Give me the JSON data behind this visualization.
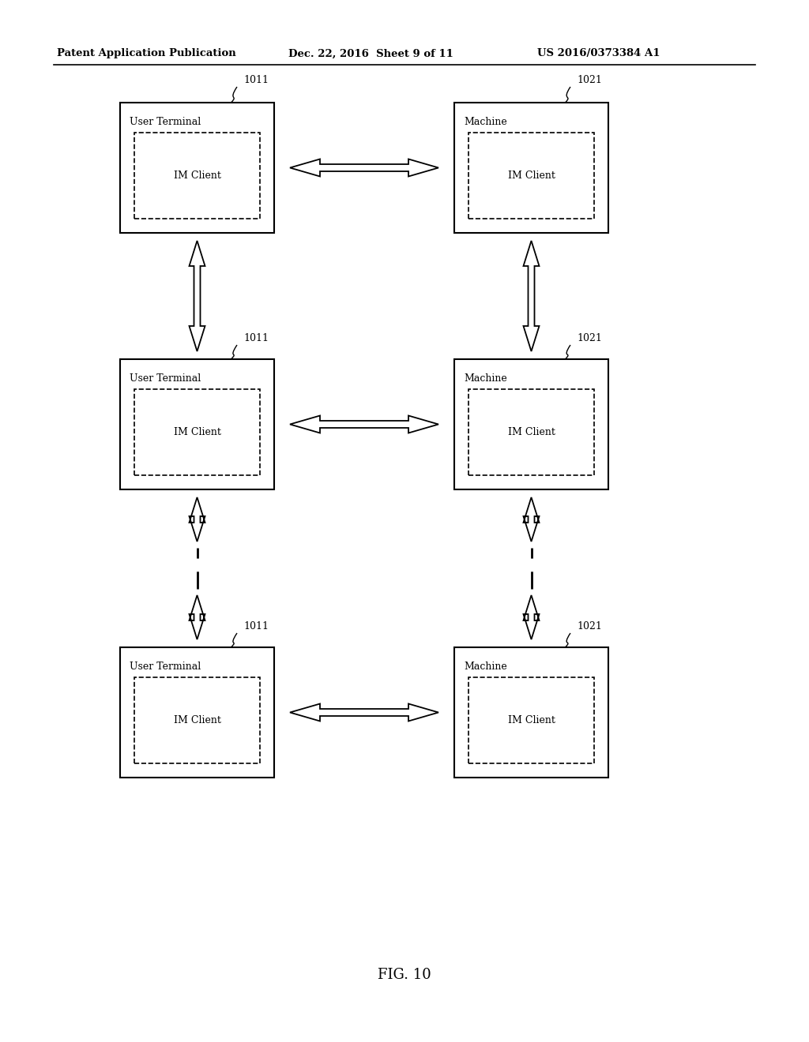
{
  "title": "FIG. 10",
  "header_left": "Patent Application Publication",
  "header_mid": "Dec. 22, 2016  Sheet 9 of 11",
  "header_right": "US 2016/0373384 A1",
  "bg_color": "#ffffff"
}
